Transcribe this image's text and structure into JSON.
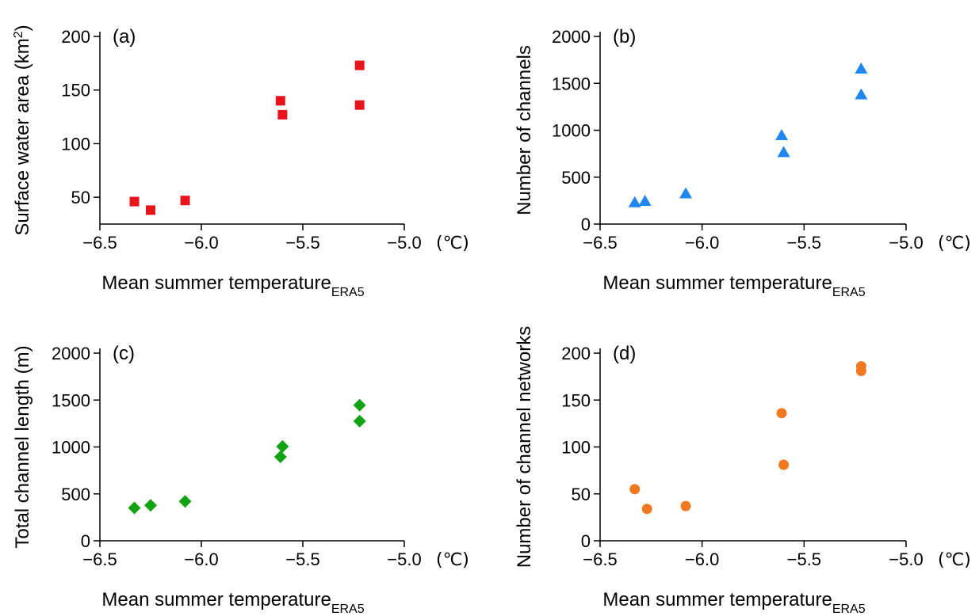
{
  "chart_data": [
    {
      "type": "scatter",
      "panel_label": "(a)",
      "xlabel": "Mean summer temperature",
      "xlabel_sub": "ERA5",
      "x_unit": "(℃)",
      "ylabel": "Surface water area (km",
      "ylabel_sup": "2",
      "ylabel_end": ")",
      "xlim": [
        -6.5,
        -5.0
      ],
      "ylim": [
        25,
        200
      ],
      "xticks": [
        -6.5,
        -6.0,
        -5.5,
        -5.0
      ],
      "xtick_labels": [
        "−6.5",
        "−6.0",
        "−5.5",
        "−5.0"
      ],
      "yticks": [
        50,
        100,
        150,
        200
      ],
      "ytick_labels": [
        "50",
        "100",
        "150",
        "200"
      ],
      "marker": "square",
      "color": "#e8141c",
      "grid": false,
      "points": [
        {
          "x": -6.33,
          "y": 46
        },
        {
          "x": -6.25,
          "y": 38
        },
        {
          "x": -6.08,
          "y": 47
        },
        {
          "x": -5.61,
          "y": 140
        },
        {
          "x": -5.6,
          "y": 127
        },
        {
          "x": -5.22,
          "y": 173
        },
        {
          "x": -5.22,
          "y": 136
        }
      ]
    },
    {
      "type": "scatter",
      "panel_label": "(b)",
      "xlabel": "Mean summer temperature",
      "xlabel_sub": "ERA5",
      "x_unit": "(℃)",
      "ylabel": "Number of channels",
      "xlim": [
        -6.5,
        -5.0
      ],
      "ylim": [
        0,
        2000
      ],
      "xticks": [
        -6.5,
        -6.0,
        -5.5,
        -5.0
      ],
      "xtick_labels": [
        "−6.5",
        "−6.0",
        "−5.5",
        "−5.0"
      ],
      "yticks": [
        0,
        500,
        1000,
        1500,
        2000
      ],
      "ytick_labels": [
        "0",
        "500",
        "1000",
        "1500",
        "2000"
      ],
      "marker": "triangle",
      "color": "#1f87ef",
      "grid": false,
      "points": [
        {
          "x": -6.33,
          "y": 230
        },
        {
          "x": -6.28,
          "y": 245
        },
        {
          "x": -6.08,
          "y": 325
        },
        {
          "x": -5.61,
          "y": 945
        },
        {
          "x": -5.6,
          "y": 765
        },
        {
          "x": -5.22,
          "y": 1655
        },
        {
          "x": -5.22,
          "y": 1380
        }
      ]
    },
    {
      "type": "scatter",
      "panel_label": "(c)",
      "xlabel": "Mean summer temperature",
      "xlabel_sub": "ERA5",
      "x_unit": "(℃)",
      "ylabel": "Total channel length (m)",
      "xlim": [
        -6.5,
        -5.0
      ],
      "ylim": [
        0,
        2000
      ],
      "xticks": [
        -6.5,
        -6.0,
        -5.5,
        -5.0
      ],
      "xtick_labels": [
        "−6.5",
        "−6.0",
        "−5.5",
        "−5.0"
      ],
      "yticks": [
        0,
        500,
        1000,
        1500,
        2000
      ],
      "ytick_labels": [
        "0",
        "500",
        "1000",
        "1500",
        "2000"
      ],
      "marker": "diamond",
      "color": "#12a312",
      "grid": false,
      "points": [
        {
          "x": -6.33,
          "y": 350
        },
        {
          "x": -6.25,
          "y": 378
        },
        {
          "x": -6.08,
          "y": 420
        },
        {
          "x": -5.61,
          "y": 895
        },
        {
          "x": -5.6,
          "y": 1005
        },
        {
          "x": -5.22,
          "y": 1445
        },
        {
          "x": -5.22,
          "y": 1275
        }
      ]
    },
    {
      "type": "scatter",
      "panel_label": "(d)",
      "xlabel": "Mean summer temperature",
      "xlabel_sub": "ERA5",
      "x_unit": "(℃)",
      "ylabel": "Number of channel networks",
      "xlim": [
        -6.5,
        -5.0
      ],
      "ylim": [
        0,
        200
      ],
      "xticks": [
        -6.5,
        -6.0,
        -5.5,
        -5.0
      ],
      "xtick_labels": [
        "−6.5",
        "−6.0",
        "−5.5",
        "−5.0"
      ],
      "yticks": [
        0,
        50,
        100,
        150,
        200
      ],
      "ytick_labels": [
        "0",
        "50",
        "100",
        "150",
        "200"
      ],
      "marker": "circle",
      "color": "#f07820",
      "grid": false,
      "points": [
        {
          "x": -6.33,
          "y": 55
        },
        {
          "x": -6.27,
          "y": 34
        },
        {
          "x": -6.08,
          "y": 37
        },
        {
          "x": -5.61,
          "y": 136
        },
        {
          "x": -5.6,
          "y": 81
        },
        {
          "x": -5.22,
          "y": 186
        },
        {
          "x": -5.22,
          "y": 181
        }
      ]
    }
  ]
}
